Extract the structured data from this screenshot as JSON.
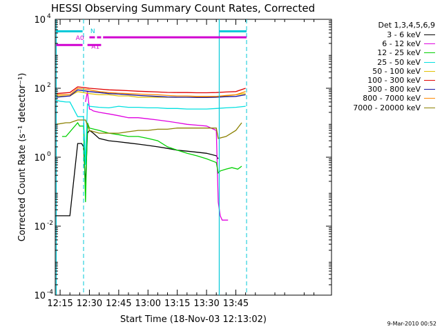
{
  "chart_data": {
    "type": "line",
    "title": "HESSI Observing Summary Count Rates, Corrected",
    "xlabel": "Start Time (18-Nov-03 12:13:02)",
    "ylabel": "Corrected Count Rate (s⁻¹ detector⁻¹)",
    "yscale": "log",
    "ylim": [
      0.0001,
      10000
    ],
    "xlim_minutes_after_12_00": [
      12.5,
      154
    ],
    "x_ticks": [
      {
        "label": "12:15",
        "minute": 15
      },
      {
        "label": "12:30",
        "minute": 30
      },
      {
        "label": "12:45",
        "minute": 45
      },
      {
        "label": "13:00",
        "minute": 60
      },
      {
        "label": "13:15",
        "minute": 75
      },
      {
        "label": "13:30",
        "minute": 90
      },
      {
        "label": "13:45",
        "minute": 105
      }
    ],
    "y_ticks": [
      {
        "value": 0.0001,
        "mant": "10",
        "exp": "-4"
      },
      {
        "value": 0.01,
        "mant": "10",
        "exp": "-2"
      },
      {
        "value": 1,
        "mant": "10",
        "exp": "0"
      },
      {
        "value": 100,
        "mant": "10",
        "exp": "2"
      },
      {
        "value": 10000,
        "mant": "10",
        "exp": "4"
      }
    ],
    "legend": {
      "title": "Det 1,3,4,5,6,9",
      "placement": "right"
    },
    "series": [
      {
        "name": "3 - 6 keV",
        "color": "#000000",
        "x": [
          13.0,
          14.0,
          15.0,
          16.0,
          17.0,
          18.0,
          19.0,
          20.0,
          24.0,
          25.0,
          26.0,
          27.0,
          28.0,
          29.0,
          30.0,
          31.0,
          32.0,
          35.0,
          40.0,
          45.0,
          50.0,
          55.0,
          60.0,
          65.0,
          70.0,
          75.0,
          80.0,
          85.0,
          90.0,
          95.0,
          96.0
        ],
        "y": [
          0.02,
          0.02,
          0.02,
          0.02,
          0.02,
          0.02,
          0.02,
          0.02,
          2.5,
          2.5,
          2.5,
          2.0,
          0.15,
          5.0,
          6.0,
          5.5,
          5.0,
          3.5,
          3.0,
          2.8,
          2.6,
          2.4,
          2.2,
          2.0,
          1.8,
          1.6,
          1.5,
          1.4,
          1.3,
          1.1,
          0.9
        ]
      },
      {
        "name": "6 - 12 keV",
        "color": "#e000e0",
        "x": [
          28.0,
          29.0,
          30.0,
          31.0,
          32.0,
          35.0,
          40.0,
          45.0,
          50.0,
          55.0,
          60.0,
          65.0,
          70.0,
          75.0,
          80.0,
          85.0,
          90.0,
          95.0,
          96.0,
          97.0,
          98.0,
          99.0,
          100.0,
          101.0
        ],
        "y": [
          40.0,
          80.0,
          25.0,
          24.0,
          22.0,
          20.0,
          18.0,
          16.0,
          14.0,
          14.0,
          13.0,
          12.0,
          11.0,
          10.0,
          9.0,
          8.5,
          8.0,
          6.0,
          0.05,
          0.02,
          0.015,
          0.015,
          0.015,
          0.015
        ]
      },
      {
        "name": "12 - 25 keV",
        "color": "#00d000",
        "x": [
          16.0,
          17.0,
          18.0,
          24.0,
          25.0,
          26.0,
          27.0,
          28.0,
          29.0,
          30.0,
          35.0,
          40.0,
          45.0,
          50.0,
          55.0,
          60.0,
          65.0,
          70.0,
          75.0,
          80.0,
          85.0,
          90.0,
          95.0,
          96.0,
          97.0,
          100.0,
          103.0,
          106.0,
          108.0
        ],
        "y": [
          4.0,
          4.0,
          4.0,
          10.0,
          8.0,
          8.0,
          8.0,
          0.05,
          10.0,
          7.0,
          6.0,
          5.0,
          4.5,
          4.0,
          4.0,
          3.5,
          3.0,
          2.0,
          1.6,
          1.3,
          1.1,
          0.9,
          0.7,
          0.35,
          0.4,
          0.45,
          0.5,
          0.45,
          0.55
        ]
      },
      {
        "name": "25 - 50 keV",
        "color": "#00e0e0",
        "x": [
          13.0,
          15.0,
          18.0,
          20.0,
          24.0,
          25.0,
          26.0,
          27.0,
          28.0,
          29.0,
          30.0,
          35.0,
          40.0,
          45.0,
          50.0,
          55.0,
          60.0,
          65.0,
          70.0,
          75.0,
          80.0,
          85.0,
          90.0,
          95.0,
          100.0,
          105.0,
          110.0
        ],
        "y": [
          45.0,
          42.0,
          40.0,
          40.0,
          15.0,
          15.0,
          15.0,
          15.0,
          0.6,
          35.0,
          30.0,
          28.0,
          27.0,
          30.0,
          28.0,
          28.0,
          27.0,
          27.0,
          26.0,
          26.0,
          25.0,
          25.0,
          25.0,
          26.0,
          27.0,
          28.0,
          30.0
        ]
      },
      {
        "name": "50 - 100 keV",
        "color": "#e0c000",
        "x": [
          13.0,
          20.0,
          24.0,
          30.0,
          35.0,
          40.0,
          45.0,
          50.0,
          55.0,
          60.0,
          65.0,
          70.0,
          75.0,
          80.0,
          85.0,
          90.0,
          95.0,
          100.0,
          105.0,
          110.0
        ],
        "y": [
          60.0,
          60.0,
          80.0,
          70.0,
          65.0,
          65.0,
          60.0,
          60.0,
          55.0,
          55.0,
          55.0,
          55.0,
          55.0,
          55.0,
          55.0,
          55.0,
          55.0,
          60.0,
          65.0,
          70.0
        ]
      },
      {
        "name": "100 - 300 keV",
        "color": "#e00000",
        "x": [
          13.0,
          20.0,
          24.0,
          30.0,
          35.0,
          40.0,
          45.0,
          50.0,
          55.0,
          60.0,
          65.0,
          70.0,
          75.0,
          80.0,
          85.0,
          90.0,
          95.0,
          100.0,
          105.0,
          110.0
        ],
        "y": [
          70.0,
          75.0,
          110.0,
          100.0,
          95.0,
          90.0,
          88.0,
          85.0,
          82.0,
          80.0,
          78.0,
          76.0,
          75.0,
          75.0,
          74.0,
          74.0,
          75.0,
          78.0,
          80.0,
          100.0
        ]
      },
      {
        "name": "300 - 800 keV",
        "color": "#1010a0",
        "x": [
          13.0,
          20.0,
          24.0,
          30.0,
          35.0,
          40.0,
          45.0,
          50.0,
          55.0,
          60.0,
          65.0,
          70.0,
          75.0,
          80.0,
          85.0,
          90.0,
          95.0,
          100.0,
          105.0,
          110.0
        ],
        "y": [
          55.0,
          60.0,
          90.0,
          80.0,
          75.0,
          70.0,
          68.0,
          65.0,
          62.0,
          60.0,
          58.0,
          56.0,
          55.0,
          55.0,
          54.0,
          54.0,
          55.0,
          57.0,
          58.0,
          65.0
        ]
      },
      {
        "name": "800 - 7000 keV",
        "color": "#ff8800",
        "x": [
          13.0,
          20.0,
          24.0,
          30.0,
          35.0,
          40.0,
          45.0,
          50.0,
          55.0,
          60.0,
          65.0,
          70.0,
          75.0,
          80.0,
          85.0,
          90.0,
          95.0,
          100.0,
          105.0,
          110.0
        ],
        "y": [
          65.0,
          65.0,
          100.0,
          90.0,
          80.0,
          75.0,
          72.0,
          70.0,
          68.0,
          66.0,
          65.0,
          62.0,
          60.0,
          60.0,
          58.0,
          58.0,
          58.0,
          62.0,
          65.0,
          80.0
        ]
      },
      {
        "name": "7000 - 20000 keV",
        "color": "#8a8000",
        "x": [
          13.0,
          18.0,
          20.0,
          24.0,
          28.0,
          30.0,
          35.0,
          40.0,
          45.0,
          50.0,
          55.0,
          60.0,
          65.0,
          70.0,
          75.0,
          80.0,
          85.0,
          90.0,
          95.0,
          96.0,
          100.0,
          105.0,
          108.0
        ],
        "y": [
          9.0,
          10.0,
          10.0,
          12.0,
          12.0,
          6.0,
          5.0,
          5.0,
          5.0,
          5.5,
          6.0,
          6.0,
          6.5,
          6.5,
          7.0,
          7.0,
          7.0,
          7.0,
          7.0,
          3.5,
          4.0,
          6.0,
          10.0
        ]
      }
    ],
    "annotations": [
      {
        "text": "N",
        "color": "#00c8d8"
      },
      {
        "text": "A0",
        "color": "#d000d0"
      },
      {
        "text": "A1",
        "color": "#d000d0"
      }
    ],
    "grid": false
  },
  "footer": {
    "timestamp": "9-Mar-2010 00:52"
  }
}
